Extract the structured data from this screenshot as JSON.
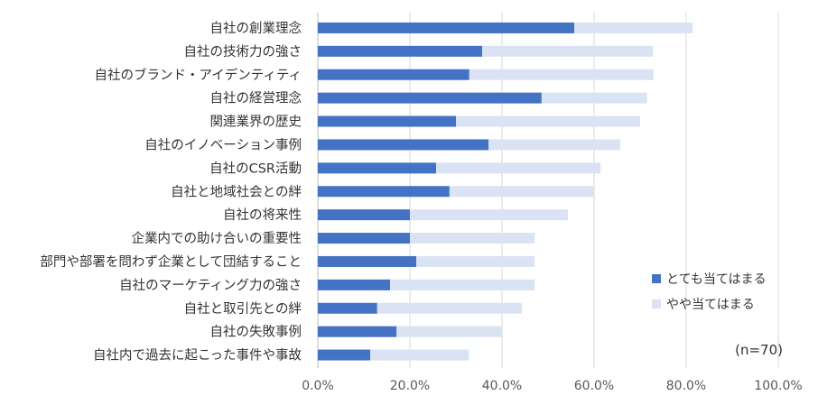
{
  "chart_data": {
    "type": "bar",
    "orientation": "horizontal",
    "stacked": true,
    "categories": [
      "自社の創業理念",
      "自社の技術力の強さ",
      "自社のブランド・アイデンティティ",
      "自社の経営理念",
      "関連業界の歴史",
      "自社のイノベーション事例",
      "自社のCSR活動",
      "自社と地域社会との絆",
      "自社の将来性",
      "企業内での助け合いの重要性",
      "部門や部署を問わず企業として団結すること",
      "自社のマーケティング力の強さ",
      "自社と取引先との絆",
      "自社の失敗事例",
      "自社内で過去に起こった事件や事故"
    ],
    "series": [
      {
        "name": "とても当てはまる",
        "color": "#4472C4",
        "values": [
          55.7,
          35.7,
          32.9,
          48.6,
          30.0,
          37.1,
          25.7,
          28.6,
          20.0,
          20.0,
          21.4,
          15.7,
          12.9,
          17.1,
          11.4
        ]
      },
      {
        "name": "やや当てはまる",
        "color": "#DAE3F3",
        "values": [
          25.7,
          37.1,
          40.0,
          22.9,
          40.0,
          28.6,
          35.7,
          31.4,
          34.3,
          27.1,
          25.7,
          31.4,
          31.4,
          22.9,
          21.4
        ]
      }
    ],
    "xlim": [
      0,
      100
    ],
    "xticks": [
      "0.0%",
      "20.0%",
      "40.0%",
      "60.0%",
      "80.0%",
      "100.0%"
    ],
    "grid": true,
    "legend_position": "bottom-right",
    "annotation": "(n=70)"
  }
}
